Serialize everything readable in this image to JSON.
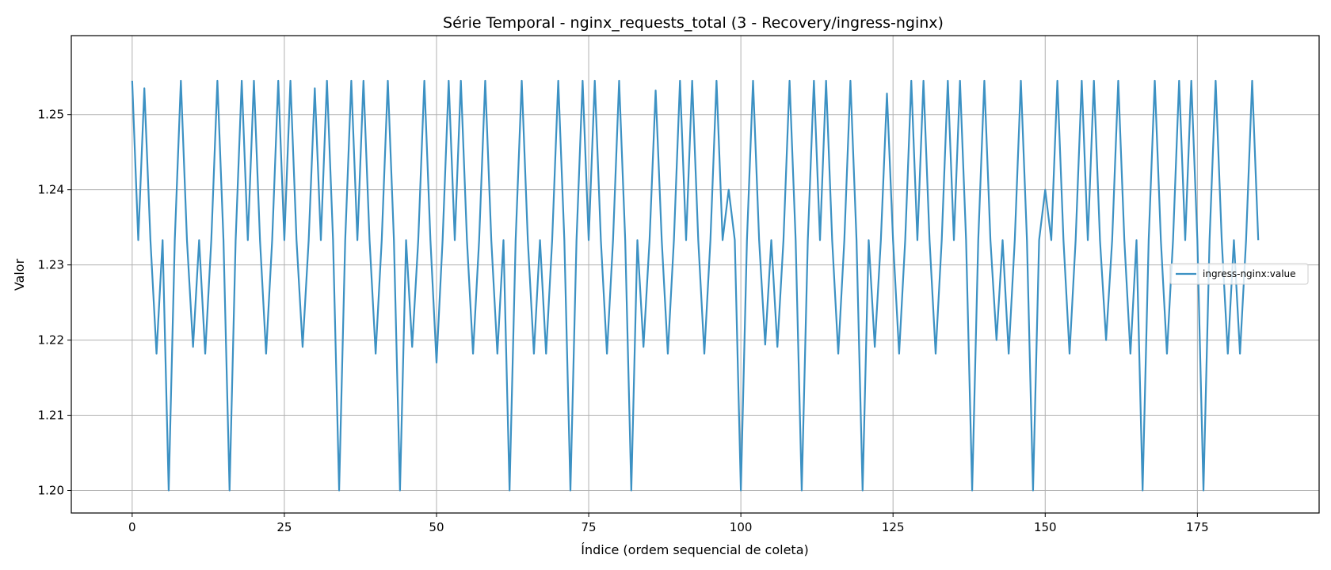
{
  "chart_data": {
    "type": "line",
    "title": "Série Temporal - nginx_requests_total (3 - Recovery/ingress-nginx)",
    "xlabel": "Índice (ordem sequencial de coleta)",
    "ylabel": "Valor",
    "xlim": [
      -10,
      195
    ],
    "ylim": [
      1.197,
      1.2605
    ],
    "xticks": [
      0,
      25,
      50,
      75,
      100,
      125,
      150,
      175
    ],
    "xtick_labels": [
      "0",
      "25",
      "50",
      "75",
      "100",
      "125",
      "150",
      "175"
    ],
    "yticks": [
      1.2,
      1.21,
      1.22,
      1.23,
      1.24,
      1.25
    ],
    "ytick_labels": [
      "1.20",
      "1.21",
      "1.22",
      "1.23",
      "1.24",
      "1.25"
    ],
    "grid": true,
    "legend_position": "center-right",
    "line_color": "#3c91c3",
    "series": [
      {
        "name": "ingress-nginx:value",
        "x": [
          0,
          1,
          2,
          3,
          4,
          5,
          6,
          7,
          8,
          9,
          10,
          11,
          12,
          13,
          14,
          15,
          16,
          17,
          18,
          19,
          20,
          21,
          22,
          23,
          24,
          25,
          26,
          27,
          28,
          29,
          30,
          31,
          32,
          33,
          34,
          35,
          36,
          37,
          38,
          39,
          40,
          41,
          42,
          43,
          44,
          45,
          46,
          47,
          48,
          49,
          50,
          51,
          52,
          53,
          54,
          55,
          56,
          57,
          58,
          59,
          60,
          61,
          62,
          63,
          64,
          65,
          66,
          67,
          68,
          69,
          70,
          71,
          72,
          73,
          74,
          75,
          76,
          77,
          78,
          79,
          80,
          81,
          82,
          83,
          84,
          85,
          86,
          87,
          88,
          89,
          90,
          91,
          92,
          93,
          94,
          95,
          96,
          97,
          98,
          99,
          100,
          101,
          102,
          103,
          104,
          105,
          106,
          107,
          108,
          109,
          110,
          111,
          112,
          113,
          114,
          115,
          116,
          117,
          118,
          119,
          120,
          121,
          122,
          123,
          124,
          125,
          126,
          127,
          128,
          129,
          130,
          131,
          132,
          133,
          134,
          135,
          136,
          137,
          138,
          139,
          140,
          141,
          142,
          143,
          144,
          145,
          146,
          147,
          148,
          149,
          150,
          151,
          152,
          153,
          154,
          155,
          156,
          157,
          158,
          159,
          160,
          161,
          162,
          163,
          164,
          165,
          166,
          167,
          168,
          169,
          170,
          171,
          172,
          173,
          174,
          175,
          176,
          177,
          178,
          179,
          180,
          181,
          182,
          183,
          184,
          185
        ],
        "values": [
          1.2545,
          1.2333,
          1.2535,
          1.2333,
          1.2182,
          1.2333,
          1.2,
          1.2333,
          1.2545,
          1.2333,
          1.2191,
          1.2333,
          1.2182,
          1.2333,
          1.2545,
          1.2333,
          1.2,
          1.2333,
          1.2545,
          1.2333,
          1.2545,
          1.2333,
          1.2182,
          1.2333,
          1.2545,
          1.2333,
          1.2545,
          1.2333,
          1.2191,
          1.2333,
          1.2535,
          1.2333,
          1.2545,
          1.2333,
          1.2,
          1.2333,
          1.2545,
          1.2333,
          1.2545,
          1.2333,
          1.2182,
          1.2333,
          1.2545,
          1.2333,
          1.2,
          1.2333,
          1.2191,
          1.2333,
          1.2545,
          1.2333,
          1.217,
          1.2333,
          1.2545,
          1.2333,
          1.2545,
          1.2333,
          1.2182,
          1.2333,
          1.2545,
          1.2333,
          1.2182,
          1.2333,
          1.2,
          1.2333,
          1.2545,
          1.2333,
          1.2182,
          1.2333,
          1.2182,
          1.2333,
          1.2545,
          1.2333,
          1.2,
          1.2333,
          1.2545,
          1.2333,
          1.2545,
          1.2333,
          1.2182,
          1.2333,
          1.2545,
          1.2333,
          1.2,
          1.2333,
          1.2191,
          1.2333,
          1.2532,
          1.2333,
          1.2182,
          1.2333,
          1.2545,
          1.2333,
          1.2545,
          1.2333,
          1.2182,
          1.2333,
          1.2545,
          1.2333,
          1.24,
          1.2333,
          1.2,
          1.2333,
          1.2545,
          1.2333,
          1.2194,
          1.2333,
          1.2191,
          1.2333,
          1.2545,
          1.2333,
          1.2,
          1.2333,
          1.2545,
          1.2333,
          1.2545,
          1.2333,
          1.2182,
          1.2333,
          1.2545,
          1.2333,
          1.2,
          1.2333,
          1.2191,
          1.2333,
          1.2528,
          1.2333,
          1.2182,
          1.2333,
          1.2545,
          1.2333,
          1.2545,
          1.2333,
          1.2182,
          1.2333,
          1.2545,
          1.2333,
          1.2545,
          1.2333,
          1.2,
          1.2333,
          1.2545,
          1.2333,
          1.22,
          1.2333,
          1.2182,
          1.2333,
          1.2545,
          1.2333,
          1.2,
          1.2333,
          1.24,
          1.2333,
          1.2545,
          1.2333,
          1.2182,
          1.2333,
          1.2545,
          1.2333,
          1.2545,
          1.2333,
          1.22,
          1.2333,
          1.2545,
          1.2333,
          1.2182,
          1.2333,
          1.2,
          1.2333,
          1.2545,
          1.2333,
          1.2182,
          1.2333,
          1.2545,
          1.2333,
          1.2545,
          1.2333,
          1.2,
          1.2333,
          1.2545,
          1.2333,
          1.2182,
          1.2333,
          1.2182,
          1.2333,
          1.2545,
          1.2333
        ]
      }
    ]
  }
}
